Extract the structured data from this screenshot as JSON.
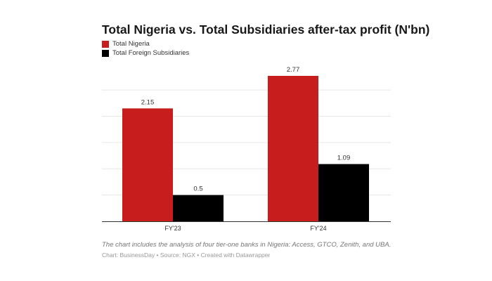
{
  "chart_data": {
    "type": "bar",
    "title": "Total Nigeria vs. Total Subsidiaries after-tax profit (N'bn)",
    "categories": [
      "FY'23",
      "FY'24"
    ],
    "series": [
      {
        "name": "Total Nigeria",
        "values": [
          2.15,
          2.77
        ],
        "color": "#c71e1d"
      },
      {
        "name": "Total Foreign Subsidiaries",
        "values": [
          0.5,
          1.09
        ],
        "color": "#000000"
      }
    ],
    "data_labels": [
      [
        "2.15",
        "2.77"
      ],
      [
        "0.5",
        "1.09"
      ]
    ],
    "ylim": [
      0,
      2.77
    ],
    "grid": true,
    "gridline_values": [
      0.5,
      1,
      1.5,
      2,
      2.5
    ],
    "legend": "top-left",
    "xlabel": "",
    "ylabel": ""
  },
  "notes": "The chart includes the analysis of four tier-one banks in Nigeria: Access, GTCO, Zenith, and UBA.",
  "credit": "Chart: BusinessDay • Source: NGX • Created with Datawrapper"
}
